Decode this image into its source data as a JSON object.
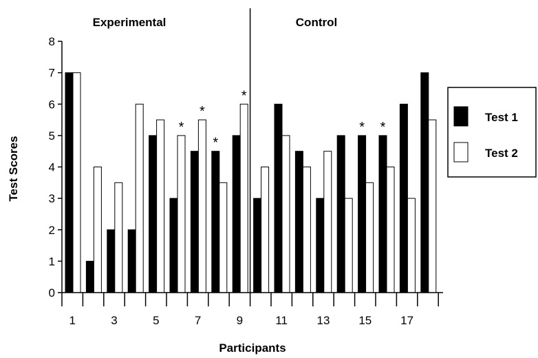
{
  "chart_data": {
    "type": "bar",
    "title": "",
    "xlabel": "Participants",
    "ylabel": "Test Scores",
    "ylim": [
      0,
      8
    ],
    "yticks": [
      0,
      1,
      2,
      3,
      4,
      5,
      6,
      7,
      8
    ],
    "x": [
      1,
      2,
      3,
      4,
      5,
      6,
      7,
      8,
      9,
      10,
      11,
      12,
      13,
      14,
      15,
      16,
      17,
      18
    ],
    "xtick_labels": [
      "1",
      "3",
      "5",
      "7",
      "9",
      "11",
      "13",
      "15",
      "17"
    ],
    "xtick_label_values": [
      1,
      3,
      5,
      7,
      9,
      11,
      13,
      15,
      17
    ],
    "groups": [
      {
        "label": "Experimental",
        "participants": [
          1,
          9
        ]
      },
      {
        "label": "Control",
        "participants": [
          10,
          18
        ]
      }
    ],
    "series": [
      {
        "name": "Test 1",
        "fill": "#000000",
        "values": [
          7,
          1,
          2,
          2,
          5,
          3,
          4.5,
          4.5,
          5,
          3,
          6,
          4.5,
          3,
          5,
          5,
          5,
          6,
          7
        ]
      },
      {
        "name": "Test 2",
        "fill": "#ffffff",
        "values": [
          7,
          4,
          3.5,
          6,
          5.5,
          5,
          5.5,
          3.5,
          6,
          4,
          5,
          4,
          4.5,
          3,
          3.5,
          4,
          3,
          5.5
        ]
      }
    ],
    "annotations": [
      {
        "text": "*",
        "participant": 6,
        "series": "Test 2"
      },
      {
        "text": "*",
        "participant": 7,
        "series": "Test 2"
      },
      {
        "text": "*",
        "participant": 8,
        "series": "Test 1"
      },
      {
        "text": "*",
        "participant": 9,
        "series": "Test 2"
      },
      {
        "text": "*",
        "participant": 15,
        "series": "Test 1"
      },
      {
        "text": "*",
        "participant": 16,
        "series": "Test 1"
      }
    ],
    "legend": {
      "placement": "right"
    },
    "grid": false
  }
}
